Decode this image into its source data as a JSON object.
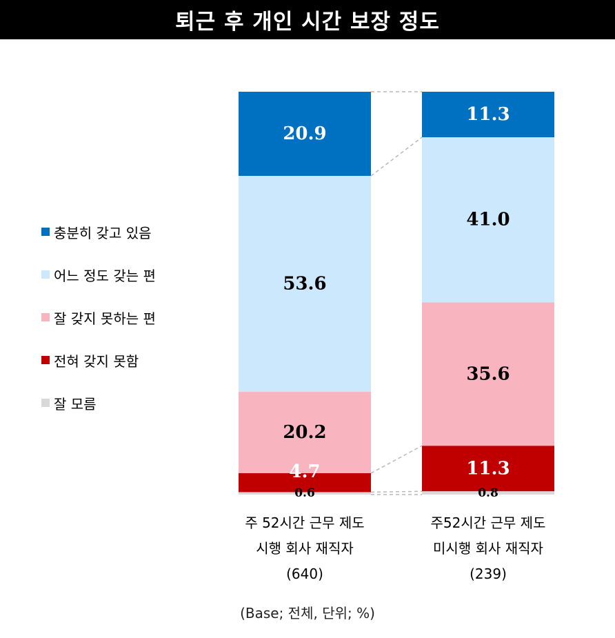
{
  "title": "퇴근 후 개인 시간 보장 정도",
  "footnote": "(Base; 전체, 단위; %)",
  "colors": {
    "충분히 갖고 있음": "#0070C0",
    "어느 정도 갖는 편": "#CCE8FC",
    "잘 갖지 못하는 편": "#F8B5C0",
    "전혀 갖지 못함": "#C00000",
    "잘 모름": "#D9D9D9"
  },
  "chart_data": {
    "type": "bar",
    "stacked": true,
    "percent_stacked": true,
    "title": "퇴근 후 개인 시간 보장 정도",
    "categories": [
      [
        "주 52시간  근무 제도",
        "시행 회사 재직자",
        "(640)"
      ],
      [
        "주52시간 근무 제도",
        "미시행 회사 재직자",
        "(239)"
      ]
    ],
    "series": [
      {
        "name": "충분히 갖고 있음",
        "values": [
          20.9,
          11.3
        ],
        "labels": [
          "20.9",
          "11.3"
        ]
      },
      {
        "name": "어느 정도 갖는 편",
        "values": [
          53.6,
          41.0
        ],
        "labels": [
          "53.6",
          "41.0"
        ]
      },
      {
        "name": "잘 갖지 못하는 편",
        "values": [
          20.2,
          35.6
        ],
        "labels": [
          "20.2",
          "35.6"
        ]
      },
      {
        "name": "전혀 갖지 못함",
        "values": [
          4.7,
          11.3
        ],
        "labels": [
          "4.7",
          "11.3"
        ]
      },
      {
        "name": "잘 모름",
        "values": [
          0.6,
          0.8
        ],
        "labels": [
          "0.6",
          "0.8"
        ]
      }
    ],
    "legend": "left",
    "grid": false
  }
}
